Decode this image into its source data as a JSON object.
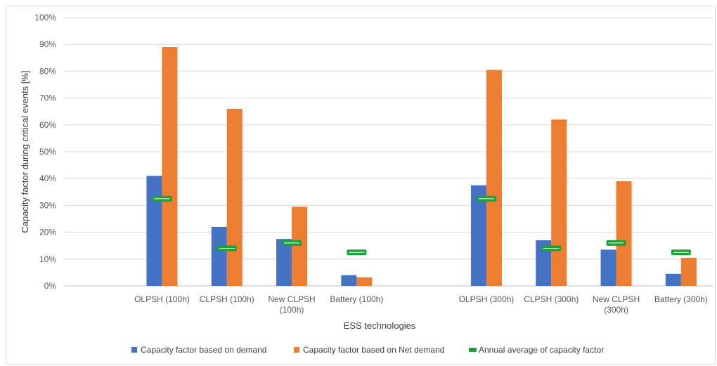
{
  "chart_data": {
    "type": "bar",
    "title": "",
    "xlabel": "ESS technologies",
    "ylabel": "Capacity factor during critical events [%]",
    "ylim": [
      0,
      100
    ],
    "yticks": [
      "0%",
      "10%",
      "20%",
      "30%",
      "40%",
      "50%",
      "60%",
      "70%",
      "80%",
      "90%",
      "100%"
    ],
    "grid": true,
    "legend_position": "bottom",
    "categories": [
      [
        "OLPSH (100h)"
      ],
      [
        "CLPSH (100h)"
      ],
      [
        "New CLPSH",
        "(100h)"
      ],
      [
        "Battery (100h)"
      ],
      [
        "OLPSH (300h)"
      ],
      [
        "CLPSH (300h)"
      ],
      [
        "New CLPSH",
        "(300h)"
      ],
      [
        "Battery (300h)"
      ]
    ],
    "series": [
      {
        "name": "Capacity factor based on demand",
        "color": "#4472c4",
        "values": [
          41,
          22,
          17.5,
          4,
          37.5,
          17,
          13.5,
          4.5
        ]
      },
      {
        "name": "Capacity factor based on Net demand",
        "color": "#ed7d31",
        "values": [
          89,
          66,
          29.5,
          3.2,
          80.5,
          62,
          39,
          10.5
        ]
      },
      {
        "name": "Annual average of capacity factor",
        "color": "#1e9f3a",
        "marker": "dash",
        "values": [
          32.5,
          14,
          16,
          12.5,
          32.5,
          14,
          16,
          12.5
        ]
      }
    ]
  }
}
